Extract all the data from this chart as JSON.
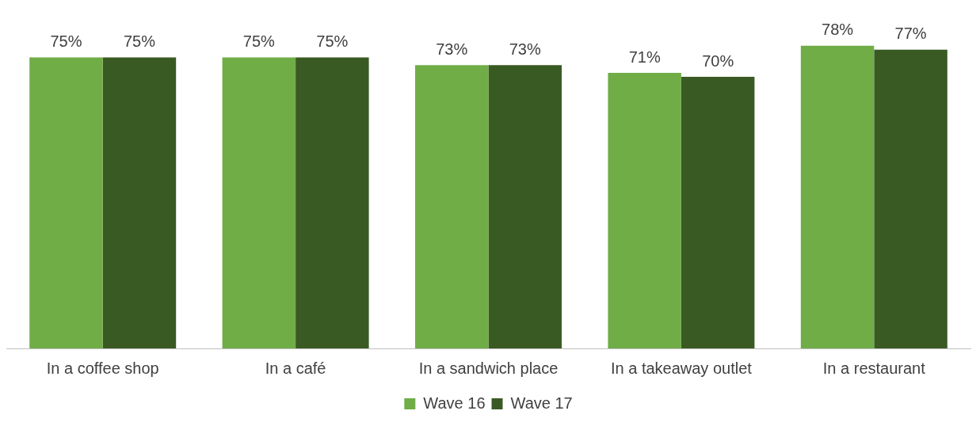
{
  "chart_data": {
    "type": "bar",
    "categories": [
      "In a coffee shop",
      "In a café",
      "In a sandwich place",
      "In a takeaway outlet",
      "In a restaurant"
    ],
    "series": [
      {
        "name": "Wave 16",
        "color": "#70ad47",
        "values": [
          75,
          75,
          73,
          71,
          78
        ],
        "value_labels": [
          "75%",
          "75%",
          "73%",
          "71%",
          "78%"
        ]
      },
      {
        "name": "Wave 17",
        "color": "#3a5a24",
        "values": [
          75,
          75,
          73,
          70,
          77
        ],
        "value_labels": [
          "75%",
          "75%",
          "73%",
          "70%",
          "77%"
        ]
      }
    ],
    "legend": "bottom",
    "grid": false
  }
}
